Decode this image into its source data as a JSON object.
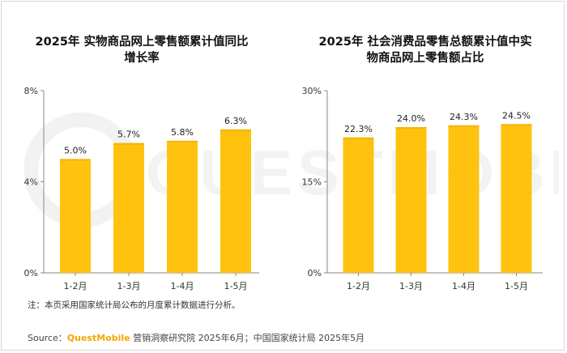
{
  "charts": {
    "left": {
      "title": "2025年 实物商品网上零售额累计值同比\n增长率"
    },
    "right": {
      "title": "2025年 社会消费品零售总额累计值中实\n物商品网上零售额占比"
    }
  },
  "chart_data": [
    {
      "type": "bar",
      "title": "2025年 实物商品网上零售额累计值同比增长率",
      "categories": [
        "1-2月",
        "1-3月",
        "1-4月",
        "1-5月"
      ],
      "values": [
        5.0,
        5.7,
        5.8,
        6.3
      ],
      "data_labels": [
        "5.0%",
        "5.7%",
        "5.8%",
        "6.3%"
      ],
      "ylim": [
        0,
        8
      ],
      "y_ticks": [
        "0%",
        "4%",
        "8%"
      ],
      "grid": false
    },
    {
      "type": "bar",
      "title": "2025年 社会消费品零售总额累计值中实物商品网上零售额占比",
      "categories": [
        "1-2月",
        "1-3月",
        "1-4月",
        "1-5月"
      ],
      "values": [
        22.3,
        24.0,
        24.3,
        24.5
      ],
      "data_labels": [
        "22.3%",
        "24.0%",
        "24.3%",
        "24.5%"
      ],
      "ylim": [
        0,
        30
      ],
      "y_ticks": [
        "0%",
        "15%",
        "30%"
      ],
      "grid": false
    }
  ],
  "colors": {
    "bar": "#FFC20E",
    "bar_top": "#FFD21F",
    "brand": "#F5A700"
  },
  "footer": {
    "note": "注：本页采用国家统计局公布的月度累计数据进行分析。",
    "source_prefix": "Source：",
    "source_brand": "QuestMobile",
    "source_rest": " 营销洞察研究院 2025年6月；中国国家统计局 2025年5月"
  },
  "watermark": "QUESTMOBILE"
}
